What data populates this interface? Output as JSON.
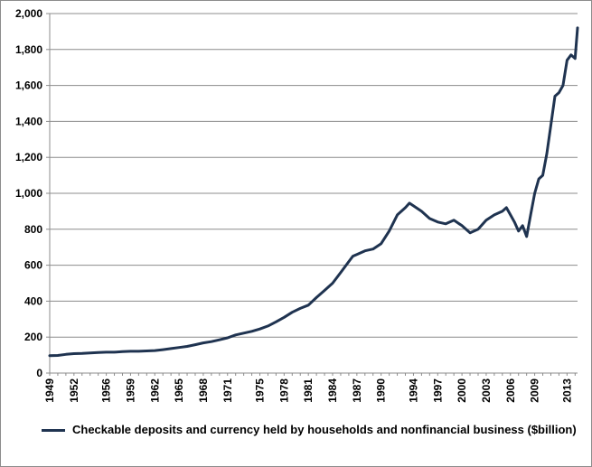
{
  "chart_data": {
    "type": "line",
    "title": "",
    "xlabel": "",
    "ylabel": "",
    "ylim": [
      0,
      2000
    ],
    "yticks": [
      0,
      200,
      400,
      600,
      800,
      1000,
      1200,
      1400,
      1600,
      1800,
      2000
    ],
    "ytick_labels": [
      "0",
      "200",
      "400",
      "600",
      "800",
      "1,000",
      "1,200",
      "1,400",
      "1,600",
      "1,800",
      "2,000"
    ],
    "xlim": [
      1949,
      2014.3
    ],
    "xticks": [
      1949,
      1952,
      1956,
      1959,
      1962,
      1965,
      1968,
      1971,
      1975,
      1978,
      1981,
      1984,
      1987,
      1990,
      1994,
      1997,
      2000,
      2003,
      2006,
      2009,
      2013
    ],
    "grid": true,
    "legend_position": "bottom",
    "series": [
      {
        "name": "Checkable deposits and currency held by households and nonfinancial business ($billion)",
        "color": "#1f3350",
        "x": [
          1949,
          1950,
          1951,
          1952,
          1953,
          1954,
          1955,
          1956,
          1957,
          1958,
          1959,
          1960,
          1961,
          1962,
          1963,
          1964,
          1965,
          1966,
          1967,
          1968,
          1969,
          1970,
          1971,
          1972,
          1973,
          1974,
          1975,
          1976,
          1977,
          1978,
          1979,
          1980,
          1981,
          1982,
          1983,
          1984,
          1985,
          1986,
          1986.5,
          1987,
          1988,
          1989,
          1990,
          1991,
          1992,
          1993,
          1993.5,
          1994,
          1995,
          1996,
          1997,
          1998,
          1999,
          2000,
          2001,
          2002,
          2003,
          2004,
          2005,
          2005.5,
          2006,
          2006.5,
          2007,
          2007.5,
          2008,
          2008.5,
          2009,
          2009.5,
          2010,
          2010.5,
          2011,
          2011.5,
          2012,
          2012.5,
          2013,
          2013.5,
          2014,
          2014.3
        ],
        "values": [
          97,
          98,
          104,
          108,
          109,
          112,
          114,
          116,
          116,
          119,
          121,
          121,
          123,
          125,
          130,
          136,
          142,
          148,
          158,
          168,
          175,
          185,
          196,
          212,
          222,
          232,
          245,
          262,
          285,
          310,
          338,
          360,
          378,
          420,
          460,
          500,
          560,
          620,
          650,
          660,
          680,
          690,
          720,
          790,
          880,
          920,
          945,
          930,
          900,
          860,
          840,
          830,
          850,
          820,
          780,
          800,
          850,
          880,
          900,
          920,
          880,
          840,
          790,
          820,
          760,
          880,
          1000,
          1080,
          1100,
          1220,
          1380,
          1540,
          1560,
          1600,
          1740,
          1770,
          1750,
          1920
        ]
      }
    ]
  }
}
